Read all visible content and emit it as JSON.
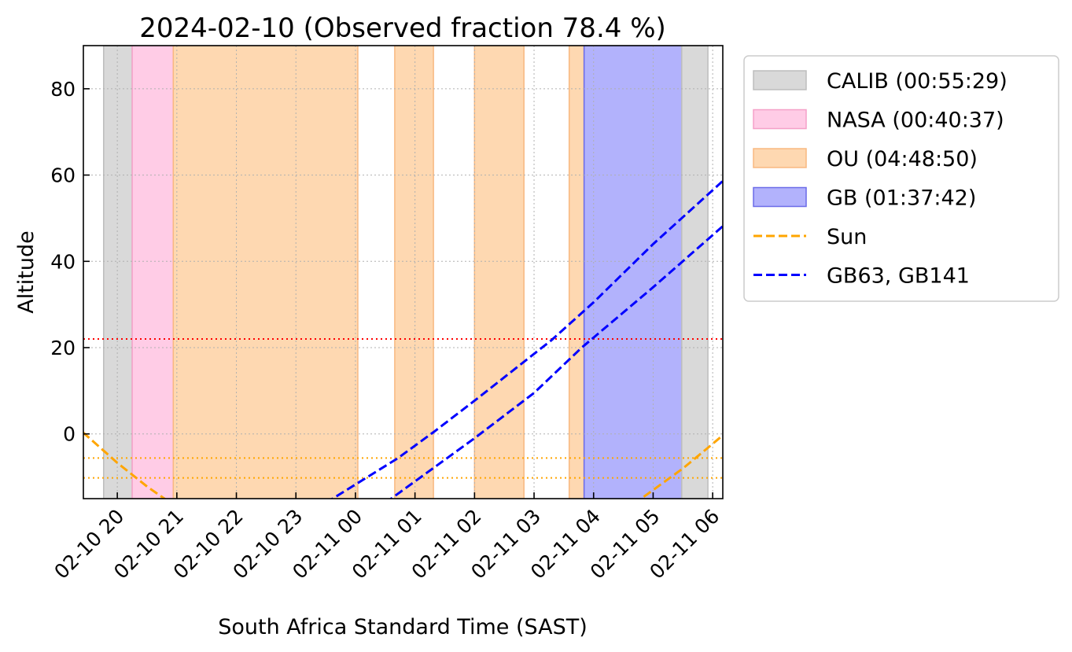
{
  "chart_data": {
    "type": "line",
    "title": "2024-02-10 (Observed fraction 78.4 %)",
    "xlabel": "South Africa Standard Time (SAST)",
    "ylabel": "Altitude",
    "x_units": "hours after 2024-02-10 20:00 SAST",
    "xlim": [
      -0.57,
      10.17
    ],
    "ylim": [
      -15,
      90
    ],
    "grid": true,
    "legend_placement": "outside-right-top",
    "xticks": [
      0,
      1,
      2,
      3,
      4,
      5,
      6,
      7,
      8,
      9,
      10
    ],
    "xtick_labels": [
      "02-10 20",
      "02-10 21",
      "02-10 22",
      "02-10 23",
      "02-11 00",
      "02-11 01",
      "02-11 02",
      "02-11 03",
      "02-11 04",
      "02-11 05",
      "02-11 06"
    ],
    "yticks": [
      0,
      20,
      40,
      60,
      80
    ],
    "ytick_labels": [
      "0",
      "20",
      "40",
      "60",
      "80"
    ],
    "spans": [
      {
        "group": "CALIB",
        "start": -0.23,
        "end": 0.25
      },
      {
        "group": "NASA",
        "start": 0.25,
        "end": 0.94
      },
      {
        "group": "OU",
        "start": 0.94,
        "end": 4.04
      },
      {
        "group": "OU",
        "start": 4.66,
        "end": 5.31
      },
      {
        "group": "OU",
        "start": 6.0,
        "end": 6.83
      },
      {
        "group": "OU",
        "start": 7.59,
        "end": 7.84
      },
      {
        "group": "GB",
        "start": 7.84,
        "end": 9.48
      },
      {
        "group": "CALIB",
        "start": 9.48,
        "end": 9.92
      }
    ],
    "groups": {
      "CALIB": {
        "fill": "#d9d9d9",
        "edge": "#bdbdbd"
      },
      "NASA": {
        "fill": "#ffcce6",
        "edge": "#f5a0c8"
      },
      "OU": {
        "fill": "#fed8b1",
        "edge": "#f8b880"
      },
      "GB": {
        "fill": "#b2b2fc",
        "edge": "#6b6be8"
      }
    },
    "hlines": [
      {
        "y": 22,
        "color": "#ff0000"
      },
      {
        "y": -5.6,
        "color": "#ffa500"
      },
      {
        "y": -10.2,
        "color": "#ffa500"
      }
    ],
    "series": [
      {
        "name": "Sun",
        "color": "#ffa500",
        "segments": [
          [
            [
              -0.58,
              0.4
            ],
            [
              0,
              -6.7
            ],
            [
              0.5,
              -12.2
            ],
            [
              1,
              -17
            ]
          ],
          [
            [
              8.5,
              -18
            ],
            [
              9,
              -13
            ],
            [
              9.5,
              -8
            ],
            [
              10,
              -2.3
            ],
            [
              10.3,
              1.2
            ]
          ]
        ]
      },
      {
        "name": "GB63",
        "color": "#0000ff",
        "segments": [
          [
            [
              3.5,
              -16
            ],
            [
              4.71,
              -5.65
            ],
            [
              5.31,
              0.4
            ],
            [
              6,
              7.7
            ],
            [
              7.29,
              21.7
            ],
            [
              8,
              30.5
            ],
            [
              9,
              44
            ],
            [
              10.2,
              59
            ]
          ]
        ]
      },
      {
        "name": "GB141",
        "color": "#0000ff",
        "segments": [
          [
            [
              4.5,
              -16
            ],
            [
              5.2,
              -9
            ],
            [
              6,
              -1
            ],
            [
              7,
              9.5
            ],
            [
              7.8,
              20
            ],
            [
              9,
              34
            ],
            [
              10.2,
              48.5
            ]
          ]
        ]
      }
    ],
    "legend": [
      {
        "label": "CALIB (00:55:29)",
        "kind": "patch",
        "group": "CALIB"
      },
      {
        "label": "NASA (00:40:37)",
        "kind": "patch",
        "group": "NASA"
      },
      {
        "label": "OU (04:48:50)",
        "kind": "patch",
        "group": "OU"
      },
      {
        "label": "GB (01:37:42)",
        "kind": "patch",
        "group": "GB"
      },
      {
        "label": "Sun",
        "kind": "line",
        "color": "#ffa500"
      },
      {
        "label": "GB63, GB141",
        "kind": "line",
        "color": "#0000ff"
      }
    ]
  }
}
